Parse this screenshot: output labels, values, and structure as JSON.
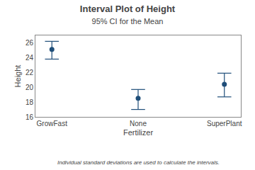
{
  "chart_data": {
    "type": "interval",
    "title": "Interval Plot of Height",
    "subtitle": "95% CI for the Mean",
    "xlabel": "Fertilizer",
    "ylabel": "Height",
    "footnote": "Individual standard deviations are used to calculate the intervals.",
    "categories": [
      "GrowFast",
      "None",
      "SuperPlant"
    ],
    "values": [
      25.1,
      18.5,
      20.4
    ],
    "ci_lower": [
      23.8,
      17.0,
      18.7
    ],
    "ci_upper": [
      26.2,
      19.7,
      21.9
    ],
    "ylim": [
      16,
      27
    ],
    "yticks": [
      16,
      18,
      20,
      22,
      24,
      26
    ],
    "color": "#1F4E79",
    "grid": false
  }
}
